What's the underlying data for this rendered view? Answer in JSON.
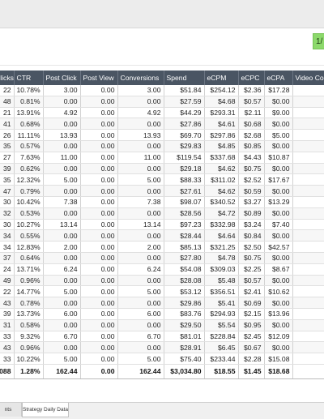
{
  "badge": "1/",
  "columns": [
    "Clicks",
    "CTR",
    "Post Click",
    "Post View",
    "Conversions",
    "Spend",
    "eCPM",
    "eCPC",
    "eCPA",
    "Video Co"
  ],
  "rows": [
    [
      "22",
      "10.78%",
      "3.00",
      "0.00",
      "3.00",
      "$51.84",
      "$254.12",
      "$2.36",
      "$17.28",
      ""
    ],
    [
      "48",
      "0.81%",
      "0.00",
      "0.00",
      "0.00",
      "$27.59",
      "$4.68",
      "$0.57",
      "$0.00",
      ""
    ],
    [
      "21",
      "13.91%",
      "4.92",
      "0.00",
      "4.92",
      "$44.29",
      "$293.31",
      "$2.11",
      "$9.00",
      ""
    ],
    [
      "41",
      "0.68%",
      "0.00",
      "0.00",
      "0.00",
      "$27.86",
      "$4.61",
      "$0.68",
      "$0.00",
      ""
    ],
    [
      "26",
      "11.11%",
      "13.93",
      "0.00",
      "13.93",
      "$69.70",
      "$297.86",
      "$2.68",
      "$5.00",
      ""
    ],
    [
      "35",
      "0.57%",
      "0.00",
      "0.00",
      "0.00",
      "$29.83",
      "$4.85",
      "$0.85",
      "$0.00",
      ""
    ],
    [
      "27",
      "7.63%",
      "11.00",
      "0.00",
      "11.00",
      "$119.54",
      "$337.68",
      "$4.43",
      "$10.87",
      ""
    ],
    [
      "39",
      "0.62%",
      "0.00",
      "0.00",
      "0.00",
      "$29.18",
      "$4.62",
      "$0.75",
      "$0.00",
      ""
    ],
    [
      "35",
      "12.32%",
      "5.00",
      "0.00",
      "5.00",
      "$88.33",
      "$311.02",
      "$2.52",
      "$17.67",
      ""
    ],
    [
      "47",
      "0.79%",
      "0.00",
      "0.00",
      "0.00",
      "$27.61",
      "$4.62",
      "$0.59",
      "$0.00",
      ""
    ],
    [
      "30",
      "10.42%",
      "7.38",
      "0.00",
      "7.38",
      "$98.07",
      "$340.52",
      "$3.27",
      "$13.29",
      ""
    ],
    [
      "32",
      "0.53%",
      "0.00",
      "0.00",
      "0.00",
      "$28.56",
      "$4.72",
      "$0.89",
      "$0.00",
      ""
    ],
    [
      "30",
      "10.27%",
      "13.14",
      "0.00",
      "13.14",
      "$97.23",
      "$332.98",
      "$3.24",
      "$7.40",
      ""
    ],
    [
      "34",
      "0.55%",
      "0.00",
      "0.00",
      "0.00",
      "$28.44",
      "$4.64",
      "$0.84",
      "$0.00",
      ""
    ],
    [
      "34",
      "12.83%",
      "2.00",
      "0.00",
      "2.00",
      "$85.13",
      "$321.25",
      "$2.50",
      "$42.57",
      ""
    ],
    [
      "37",
      "0.64%",
      "0.00",
      "0.00",
      "0.00",
      "$27.80",
      "$4.78",
      "$0.75",
      "$0.00",
      ""
    ],
    [
      "24",
      "13.71%",
      "6.24",
      "0.00",
      "6.24",
      "$54.08",
      "$309.03",
      "$2.25",
      "$8.67",
      ""
    ],
    [
      "49",
      "0.96%",
      "0.00",
      "0.00",
      "0.00",
      "$28.08",
      "$5.48",
      "$0.57",
      "$0.00",
      ""
    ],
    [
      "22",
      "14.77%",
      "5.00",
      "0.00",
      "5.00",
      "$53.12",
      "$356.51",
      "$2.41",
      "$10.62",
      ""
    ],
    [
      "43",
      "0.78%",
      "0.00",
      "0.00",
      "0.00",
      "$29.86",
      "$5.41",
      "$0.69",
      "$0.00",
      ""
    ],
    [
      "39",
      "13.73%",
      "6.00",
      "0.00",
      "6.00",
      "$83.76",
      "$294.93",
      "$2.15",
      "$13.96",
      ""
    ],
    [
      "31",
      "0.58%",
      "0.00",
      "0.00",
      "0.00",
      "$29.50",
      "$5.54",
      "$0.95",
      "$0.00",
      ""
    ],
    [
      "33",
      "9.32%",
      "6.70",
      "0.00",
      "6.70",
      "$81.01",
      "$228.84",
      "$2.45",
      "$12.09",
      ""
    ],
    [
      "43",
      "0.96%",
      "0.00",
      "0.00",
      "0.00",
      "$28.91",
      "$6.45",
      "$0.67",
      "$0.00",
      ""
    ],
    [
      "33",
      "10.22%",
      "5.00",
      "0.00",
      "5.00",
      "$75.40",
      "$233.44",
      "$2.28",
      "$15.08",
      ""
    ]
  ],
  "totals": [
    "088",
    "1.28%",
    "162.44",
    "0.00",
    "162.44",
    "$3,034.80",
    "$18.55",
    "$1.45",
    "$18.68",
    ""
  ],
  "tabs": {
    "partial": "nts",
    "active": "Strategy Daily Data"
  }
}
